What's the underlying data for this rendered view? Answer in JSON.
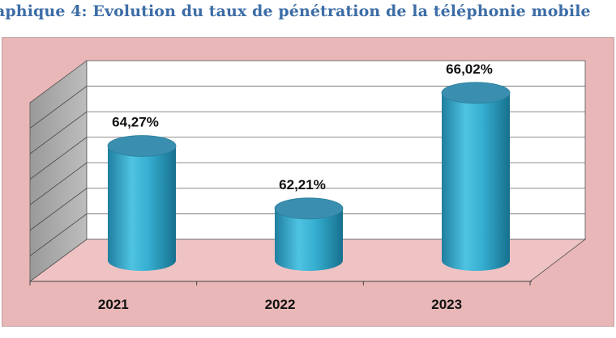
{
  "header": {
    "title": "aphique 4: Evolution du taux de pénétration de la téléphonie mobile"
  },
  "colors": {
    "title": "#3d6da6",
    "background": "#e9b7b7",
    "floor": "#efc3c3",
    "back_wall": "#ffffff",
    "side_wall": "#a9a9a9",
    "bar": "#2fa3c6",
    "bar_top": "#3a8fb0"
  },
  "chart_data": {
    "type": "bar",
    "style": "3d-cylinder",
    "title": "",
    "categories": [
      "2021",
      "2022",
      "2023"
    ],
    "values": [
      64.27,
      62.21,
      66.02
    ],
    "data_labels": [
      "64,27%",
      "62,21%",
      "66,02%"
    ],
    "xlabel": "",
    "ylabel": "",
    "ylim": [
      60.5,
      67
    ],
    "y_tick_labels_visible": false,
    "grid": true,
    "legend": "none"
  }
}
